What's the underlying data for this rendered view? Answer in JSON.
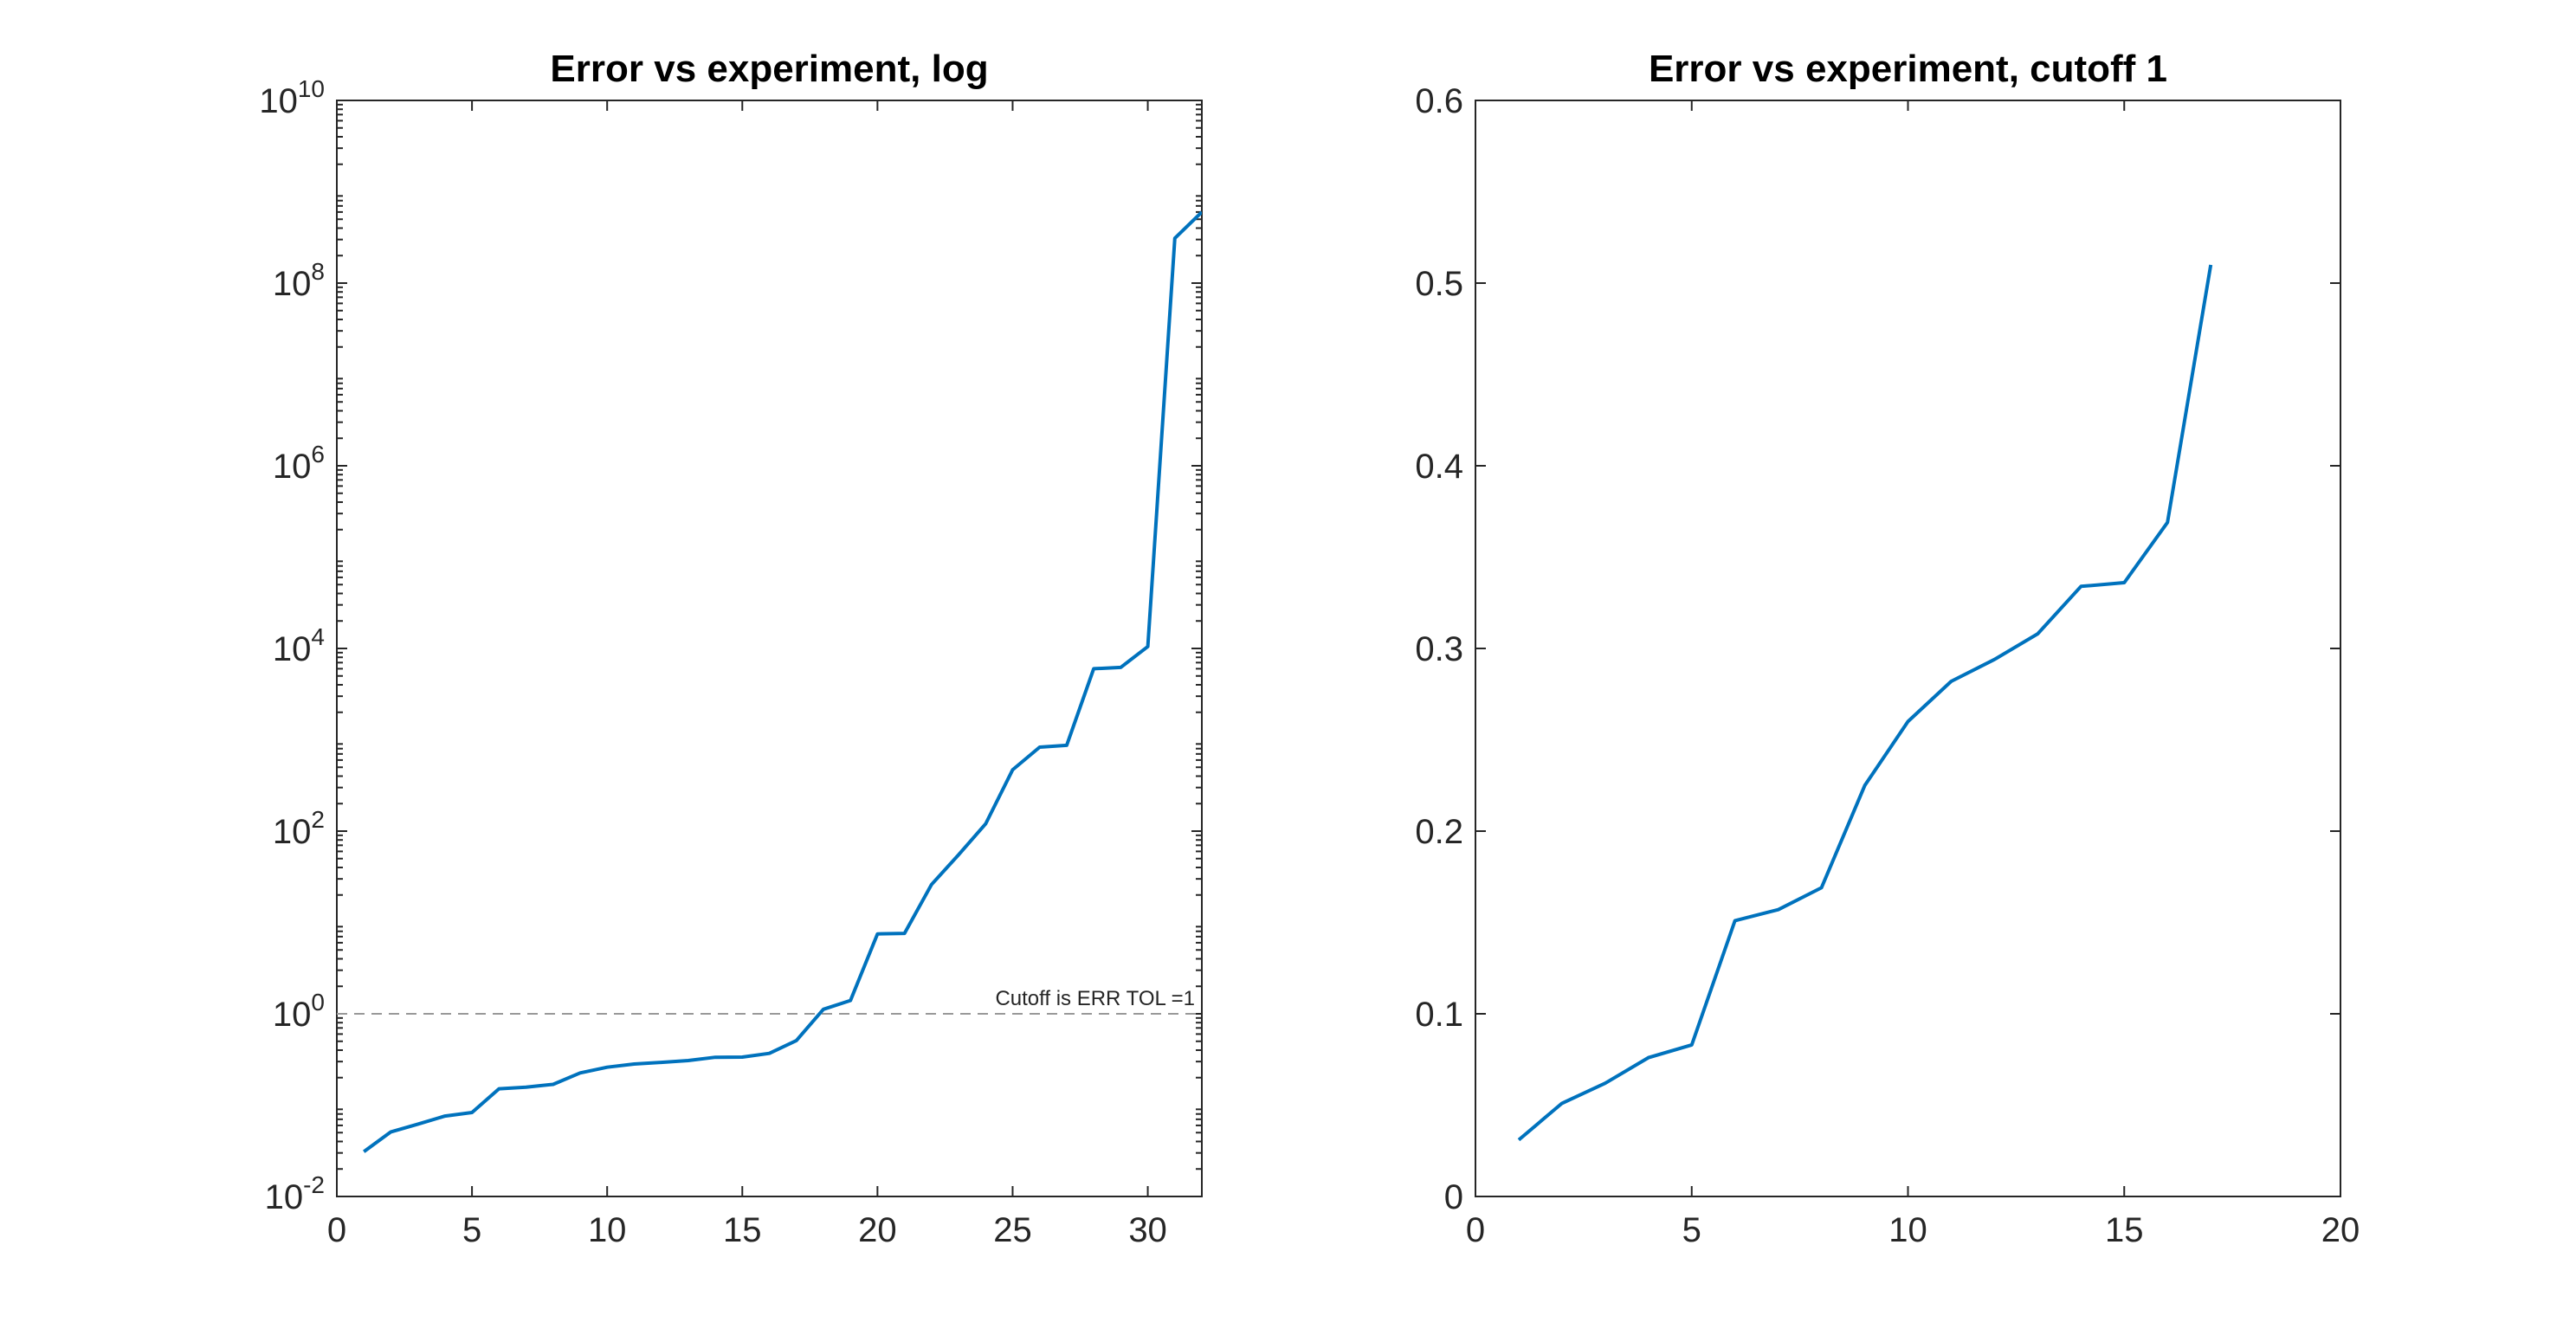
{
  "chart_data": [
    {
      "type": "line",
      "title": "Error vs experiment, log",
      "xlabel": "",
      "ylabel": "",
      "yscale": "log",
      "xlim": [
        0,
        32
      ],
      "ylim": [
        0.01,
        10000000000
      ],
      "xticks": [
        0,
        5,
        10,
        15,
        20,
        25,
        30
      ],
      "yticks": [
        {
          "base": "10",
          "exp": "-2",
          "value": 0.01
        },
        {
          "base": "10",
          "exp": "0",
          "value": 1
        },
        {
          "base": "10",
          "exp": "2",
          "value": 100
        },
        {
          "base": "10",
          "exp": "4",
          "value": 10000
        },
        {
          "base": "10",
          "exp": "6",
          "value": 1000000
        },
        {
          "base": "10",
          "exp": "8",
          "value": 100000000
        },
        {
          "base": "10",
          "exp": "10",
          "value": 10000000000
        }
      ],
      "grid": false,
      "color": "#0072BD",
      "series": [
        {
          "x": [
            1,
            2,
            3,
            4,
            5,
            6,
            7,
            8,
            9,
            10,
            11,
            12,
            13,
            14,
            15,
            16,
            17,
            18,
            19,
            20,
            21,
            22,
            23,
            24,
            25,
            26,
            27,
            28,
            29,
            30,
            31,
            32
          ],
          "y": [
            0.031,
            0.051,
            0.062,
            0.076,
            0.083,
            0.151,
            0.157,
            0.169,
            0.225,
            0.26,
            0.282,
            0.294,
            0.308,
            0.334,
            0.336,
            0.369,
            0.51,
            1.12,
            1.4,
            7.5,
            7.6,
            26,
            55,
            120,
            470,
            830,
            870,
            6000,
            6200,
            10500,
            310000000,
            600000000
          ]
        }
      ],
      "reference_line": {
        "y": 1,
        "style": "dashed",
        "color": "#999999",
        "label": "Cutoff is ERR TOL =1"
      }
    },
    {
      "type": "line",
      "title": "Error vs experiment, cutoff 1",
      "xlabel": "",
      "ylabel": "",
      "xlim": [
        0,
        20
      ],
      "ylim": [
        0,
        0.6
      ],
      "xticks": [
        "0",
        "5",
        "10",
        "15",
        "20"
      ],
      "yticks": [
        "0",
        "0.1",
        "0.2",
        "0.3",
        "0.4",
        "0.5",
        "0.6"
      ],
      "grid": false,
      "color": "#0072BD",
      "series": [
        {
          "x": [
            1,
            2,
            3,
            4,
            5,
            6,
            7,
            8,
            9,
            10,
            11,
            12,
            13,
            14,
            15,
            16,
            17
          ],
          "y": [
            0.031,
            0.051,
            0.062,
            0.076,
            0.083,
            0.151,
            0.157,
            0.169,
            0.225,
            0.26,
            0.282,
            0.294,
            0.308,
            0.334,
            0.336,
            0.369,
            0.51
          ]
        }
      ]
    }
  ]
}
